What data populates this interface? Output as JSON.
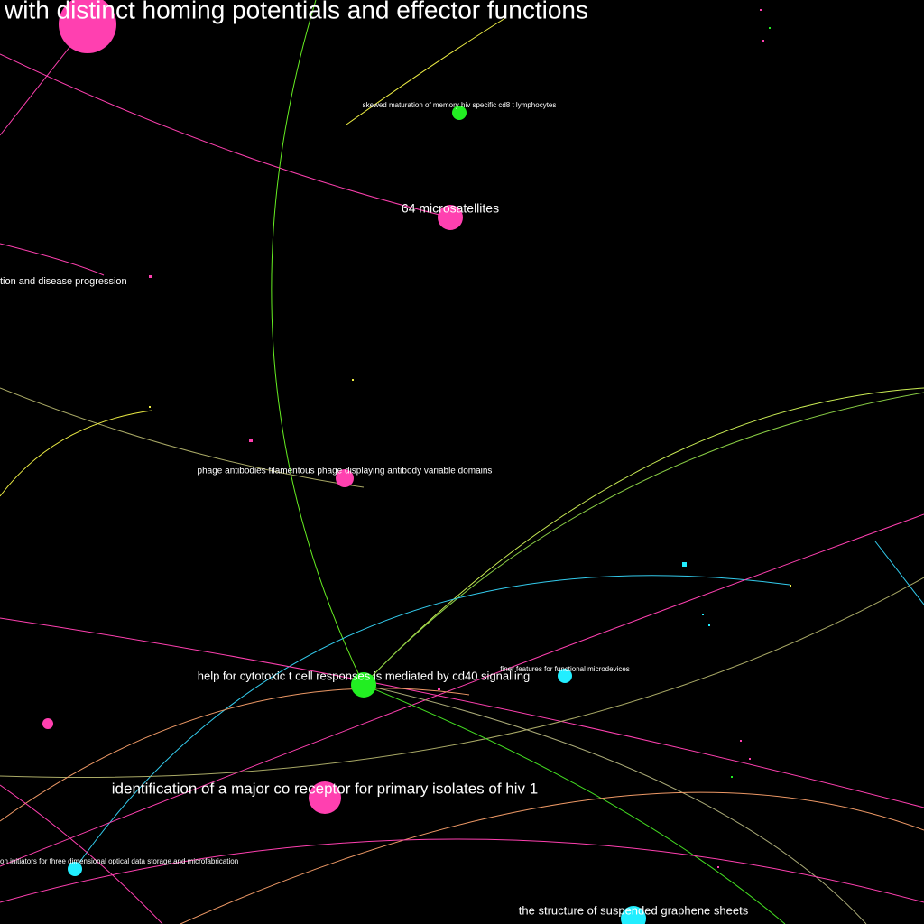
{
  "nodes": [
    {
      "label": "with distinct homing potentials and effector functions",
      "color": "#ff40b0"
    },
    {
      "label": "skewed maturation of memory hiv specific cd8 t lymphocytes",
      "color": "#22ee22"
    },
    {
      "label": "64 microsatellites",
      "color": "#ff40b0"
    },
    {
      "label": "tion and disease progression",
      "color": "#ff40b0"
    },
    {
      "label": "phage antibodies filamentous phage displaying antibody variable domains",
      "color": "#ff40b0"
    },
    {
      "label": "help for cytotoxic t cell responses is mediated by cd40 signalling",
      "color": "#22ee22"
    },
    {
      "label": "finer features for functional microdevices",
      "color": "#22eeff"
    },
    {
      "label": "identification of a major co receptor for primary isolates of hiv 1",
      "color": "#ff40b0"
    },
    {
      "label": "on initiators for three dimensional optical data storage and microfabrication",
      "color": "#22eeff"
    },
    {
      "label": "the structure of suspended graphene sheets",
      "color": "#22eeff"
    }
  ]
}
